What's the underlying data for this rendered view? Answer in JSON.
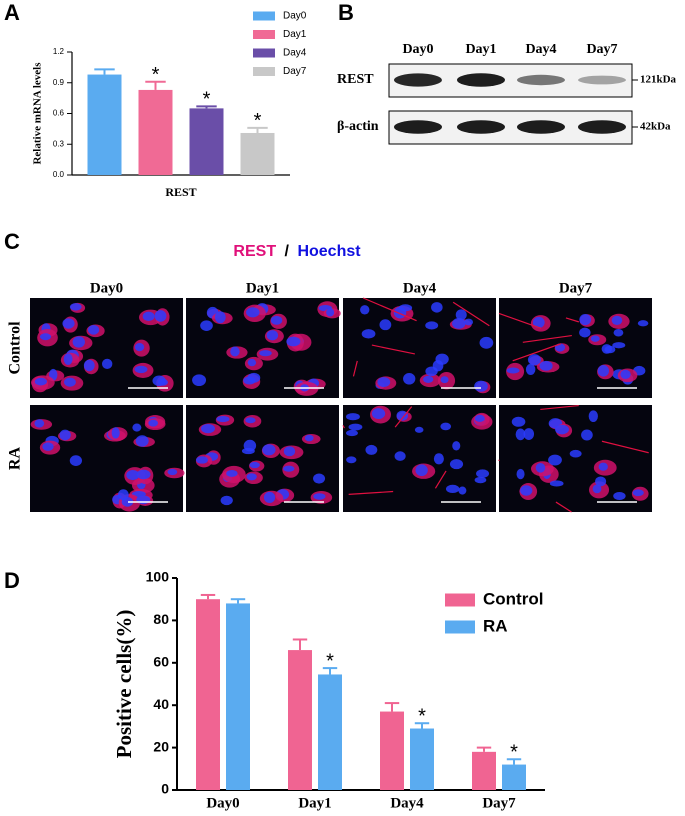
{
  "panels": {
    "a": "A",
    "b": "B",
    "c": "C",
    "d": "D"
  },
  "chart_data": [
    {
      "type": "bar",
      "ylabel": "Relative mRNA levels",
      "categories": [
        "REST"
      ],
      "series": [
        {
          "name": "Day0",
          "color": "#5aabf0",
          "values": [
            0.98
          ],
          "errors": [
            0.05
          ]
        },
        {
          "name": "Day1",
          "color": "#f06a95",
          "values": [
            0.83
          ],
          "errors": [
            0.08
          ],
          "annotations": [
            "*"
          ]
        },
        {
          "name": "Day4",
          "color": "#6a4ea8",
          "values": [
            0.65
          ],
          "errors": [
            0.02
          ],
          "annotations": [
            "*"
          ]
        },
        {
          "name": "Day7",
          "color": "#c8c8c8",
          "values": [
            0.41
          ],
          "errors": [
            0.05
          ],
          "annotations": [
            "*"
          ]
        }
      ],
      "ylim": [
        0,
        1.2
      ],
      "yticks": [
        {
          "value": 0,
          "label": "0.0"
        },
        0.3,
        0.6,
        0.9,
        1.2
      ],
      "legend": "upper right"
    },
    {
      "type": "bar",
      "ylabel": "Positive cells(%)",
      "categories": [
        "Day0",
        "Day1",
        "Day4",
        "Day7"
      ],
      "series": [
        {
          "name": "Control",
          "color": "#f06492",
          "values": [
            90,
            66,
            37,
            18
          ],
          "errors": [
            2,
            5,
            4,
            2
          ]
        },
        {
          "name": "RA",
          "color": "#5aabf0",
          "values": [
            88,
            54.5,
            29,
            12
          ],
          "errors": [
            2,
            3,
            2.5,
            2.5
          ],
          "annotations": [
            null,
            "*",
            "*",
            "*"
          ]
        }
      ],
      "ylim": [
        0,
        100
      ],
      "yticks": [
        0,
        20,
        40,
        60,
        80,
        100
      ],
      "legend": "upper right"
    }
  ],
  "western_blot": {
    "lanes": [
      "Day0",
      "Day1",
      "Day4",
      "Day7"
    ],
    "rows": [
      {
        "protein": "REST",
        "size": "121kDa"
      },
      {
        "protein": "β-actin",
        "size": "42kDa"
      }
    ]
  },
  "micrographs": {
    "title": {
      "stain1": "REST",
      "separator": "/",
      "stain2": "Hoechst"
    },
    "columns": [
      "Day0",
      "Day1",
      "Day4",
      "Day7"
    ],
    "rows": [
      "Control",
      "RA"
    ]
  }
}
